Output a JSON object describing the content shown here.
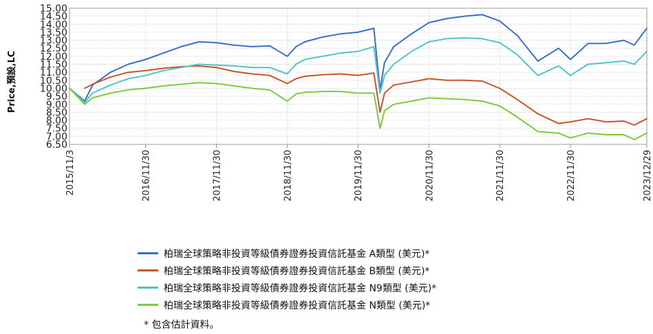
{
  "chart_data": {
    "type": "line",
    "ylabel": "Price,預設,LC",
    "xlabel": "",
    "ylim": [
      6.5,
      15.0
    ],
    "y_ticks": [
      "6.50",
      "7.00",
      "7.50",
      "8.00",
      "8.50",
      "9.00",
      "9.50",
      "10.00",
      "10.50",
      "11.00",
      "11.50",
      "12.00",
      "12.50",
      "13.00",
      "13.50",
      "14.00",
      "14.50",
      "15.00"
    ],
    "x_ticks": [
      "2015/11/3",
      "2016/11/30",
      "2017/11/30",
      "2018/11/30",
      "2019/11/30",
      "2020/11/30",
      "2021/11/30",
      "2022/11/30",
      "2023/12/29"
    ],
    "x_dates": [
      "2015/11/3",
      "2016/11/30",
      "2017/11/30",
      "2018/11/30",
      "2019/11/30",
      "2020/11/30",
      "2021/11/30",
      "2022/11/30",
      "2023/12/29"
    ],
    "grid": true,
    "legend_position": "bottom",
    "series": [
      {
        "name": "柏瑞全球策略非投資等級債券證券投資信託基金 A類型 (美元)*",
        "color": "#3a6fc4",
        "x": [
          "2015/11/3",
          "2016/01/20",
          "2016/03/01",
          "2016/06/01",
          "2016/09/01",
          "2016/11/30",
          "2017/03/01",
          "2017/06/01",
          "2017/09/01",
          "2017/11/30",
          "2018/03/01",
          "2018/06/01",
          "2018/09/01",
          "2018/11/30",
          "2019/01/15",
          "2019/03/01",
          "2019/06/01",
          "2019/09/01",
          "2019/11/30",
          "2020/02/20",
          "2020/03/23",
          "2020/04/15",
          "2020/06/01",
          "2020/09/01",
          "2020/11/30",
          "2021/03/01",
          "2021/06/01",
          "2021/09/01",
          "2021/11/30",
          "2022/03/01",
          "2022/06/15",
          "2022/09/30",
          "2022/11/30",
          "2023/03/01",
          "2023/06/01",
          "2023/09/01",
          "2023/10/25",
          "2023/12/29"
        ],
        "values": [
          10.0,
          9.2,
          10.2,
          11.0,
          11.5,
          11.8,
          12.2,
          12.6,
          12.9,
          12.85,
          12.7,
          12.6,
          12.65,
          12.0,
          12.6,
          12.9,
          13.2,
          13.4,
          13.5,
          13.75,
          9.9,
          11.6,
          12.6,
          13.4,
          14.1,
          14.35,
          14.5,
          14.6,
          14.2,
          13.3,
          11.7,
          12.5,
          11.8,
          12.8,
          12.8,
          13.0,
          12.7,
          13.75
        ]
      },
      {
        "name": "柏瑞全球策略非投資等級債券證券投資信託基金 B類型 (美元)*",
        "color": "#c9532a",
        "x": [
          "2016/01/20",
          "2016/03/01",
          "2016/06/01",
          "2016/09/01",
          "2016/11/30",
          "2017/03/01",
          "2017/06/01",
          "2017/09/01",
          "2017/11/30",
          "2018/03/01",
          "2018/06/01",
          "2018/09/01",
          "2018/11/30",
          "2019/01/15",
          "2019/03/01",
          "2019/06/01",
          "2019/09/01",
          "2019/11/30",
          "2020/02/20",
          "2020/03/23",
          "2020/04/15",
          "2020/06/01",
          "2020/09/01",
          "2020/11/30",
          "2021/03/01",
          "2021/06/01",
          "2021/09/01",
          "2021/11/30",
          "2022/03/01",
          "2022/06/15",
          "2022/09/30",
          "2022/11/30",
          "2023/03/01",
          "2023/06/01",
          "2023/09/01",
          "2023/10/25",
          "2023/12/29"
        ],
        "values": [
          10.0,
          10.25,
          10.7,
          11.0,
          11.1,
          11.25,
          11.35,
          11.4,
          11.3,
          11.05,
          10.9,
          10.8,
          10.3,
          10.6,
          10.75,
          10.85,
          10.9,
          10.8,
          10.95,
          8.5,
          9.7,
          10.2,
          10.4,
          10.6,
          10.5,
          10.5,
          10.45,
          10.0,
          9.3,
          8.4,
          7.8,
          7.9,
          8.1,
          7.9,
          7.95,
          7.7,
          8.1
        ]
      },
      {
        "name": "柏瑞全球策略非投資等級債券證券投資信託基金 N9類型 (美元)*",
        "color": "#4fc4c8",
        "x": [
          "2015/11/3",
          "2016/01/20",
          "2016/03/01",
          "2016/06/01",
          "2016/09/01",
          "2016/11/30",
          "2017/03/01",
          "2017/06/01",
          "2017/09/01",
          "2017/11/30",
          "2018/03/01",
          "2018/06/01",
          "2018/09/01",
          "2018/11/30",
          "2019/01/15",
          "2019/03/01",
          "2019/06/01",
          "2019/09/01",
          "2019/11/30",
          "2020/02/20",
          "2020/03/23",
          "2020/04/15",
          "2020/06/01",
          "2020/09/01",
          "2020/11/30",
          "2021/03/01",
          "2021/06/01",
          "2021/09/01",
          "2021/11/30",
          "2022/03/01",
          "2022/06/15",
          "2022/09/30",
          "2022/11/30",
          "2023/03/01",
          "2023/06/01",
          "2023/09/01",
          "2023/10/25",
          "2023/12/29"
        ],
        "values": [
          10.0,
          9.1,
          9.7,
          10.2,
          10.6,
          10.8,
          11.1,
          11.3,
          11.5,
          11.45,
          11.4,
          11.3,
          11.3,
          10.9,
          11.5,
          11.8,
          12.0,
          12.2,
          12.3,
          12.6,
          9.7,
          10.8,
          11.5,
          12.3,
          12.9,
          13.1,
          13.15,
          13.1,
          12.85,
          12.1,
          10.8,
          11.4,
          10.8,
          11.5,
          11.6,
          11.7,
          11.5,
          12.3
        ]
      },
      {
        "name": "柏瑞全球策略非投資等級債券證券投資信託基金 N類型 (美元)*",
        "color": "#7ccb3a",
        "x": [
          "2015/11/3",
          "2016/01/20",
          "2016/03/01",
          "2016/06/01",
          "2016/09/01",
          "2016/11/30",
          "2017/03/01",
          "2017/06/01",
          "2017/09/01",
          "2017/11/30",
          "2018/03/01",
          "2018/06/01",
          "2018/09/01",
          "2018/11/30",
          "2019/01/15",
          "2019/03/01",
          "2019/06/01",
          "2019/09/01",
          "2019/11/30",
          "2020/02/20",
          "2020/03/23",
          "2020/04/15",
          "2020/06/01",
          "2020/09/01",
          "2020/11/30",
          "2021/03/01",
          "2021/06/01",
          "2021/09/01",
          "2021/11/30",
          "2022/03/01",
          "2022/06/15",
          "2022/09/30",
          "2022/11/30",
          "2023/03/01",
          "2023/06/01",
          "2023/09/01",
          "2023/10/25",
          "2023/12/29"
        ],
        "values": [
          10.0,
          9.0,
          9.4,
          9.7,
          9.9,
          10.0,
          10.15,
          10.25,
          10.35,
          10.3,
          10.15,
          10.0,
          9.9,
          9.2,
          9.65,
          9.75,
          9.8,
          9.8,
          9.7,
          9.7,
          7.5,
          8.6,
          9.0,
          9.2,
          9.4,
          9.35,
          9.3,
          9.2,
          8.9,
          8.2,
          7.3,
          7.2,
          6.9,
          7.2,
          7.1,
          7.1,
          6.8,
          7.2
        ]
      }
    ]
  },
  "footnote": "*  包含估計資料。"
}
